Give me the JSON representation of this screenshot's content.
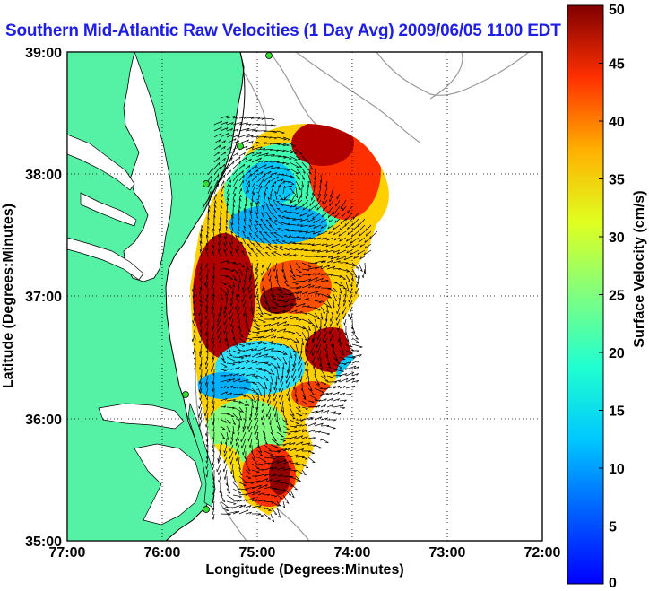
{
  "title": "Southern Mid-Atlantic Raw Velocities (1 Day Avg) 2009/06/05 1100 EDT",
  "x_axis": {
    "label": "Longitude (Degrees:Minutes)",
    "ticks": [
      "77:00",
      "76:00",
      "75:00",
      "74:00",
      "73:00",
      "72:00"
    ],
    "range": [
      -77,
      -72
    ]
  },
  "y_axis": {
    "label": "Latitude (Degrees:Minutes)",
    "ticks": [
      "39:00",
      "38:00",
      "37:00",
      "36:00",
      "35:00"
    ],
    "range": [
      35,
      39
    ]
  },
  "colorbar": {
    "label": "Surface Velocity (cm/s)",
    "ticks": [
      "0",
      "5",
      "10",
      "15",
      "20",
      "25",
      "30",
      "35",
      "40",
      "45",
      "50"
    ],
    "range": [
      0,
      50
    ],
    "colormap": "jet"
  },
  "colors": {
    "land": "#55f2a6",
    "water": "#ffffff",
    "title": "#1e1ee6",
    "coastline": "#000000",
    "bathymetry": "#9a9a9a",
    "vectors": "#000000",
    "station": "#33dd33"
  },
  "grid": "dotted",
  "hf_radar_stations": 5
}
